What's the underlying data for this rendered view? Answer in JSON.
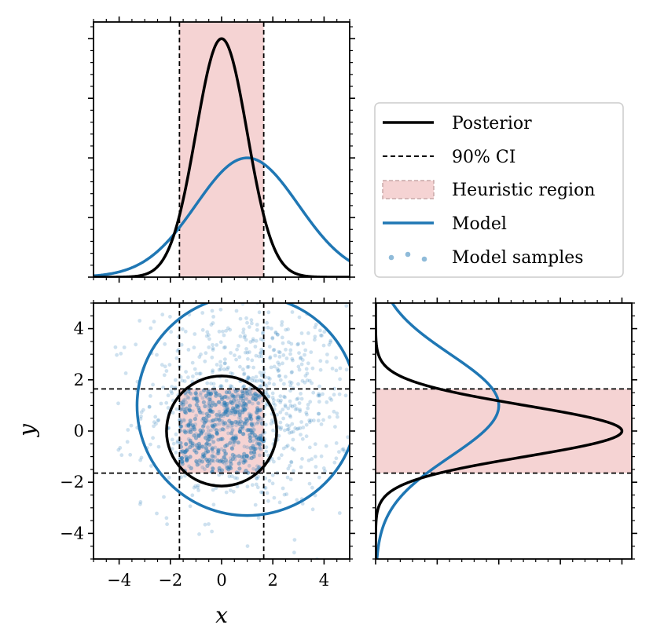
{
  "colors": {
    "posterior": "#000000",
    "model": "#1f77b4",
    "heuristic_fill": "#f5d3d3",
    "heuristic_edge": "#c8a8a8",
    "samples": "#1f77b4"
  },
  "chart_data": [
    {
      "name": "top-marginal-x",
      "type": "line",
      "xlim": [
        -5,
        5
      ],
      "ylim": [
        0,
        1.07
      ],
      "grid": false,
      "x_tick_labels_shown": false,
      "y_tick_labels_shown": false,
      "series": [
        {
          "name": "Posterior",
          "style": "solid-black",
          "curve": "normal",
          "mean": 0.0,
          "sd": 1.0,
          "peak": 1.0
        },
        {
          "name": "Model",
          "style": "solid-blue",
          "curve": "normal",
          "mean": 1.0,
          "sd": 2.0,
          "peak": 0.5
        }
      ],
      "vlines": [
        -1.645,
        1.645
      ],
      "shaded_x_range": [
        -1.645,
        1.645
      ]
    },
    {
      "name": "joint-scatter",
      "type": "scatter",
      "xlabel": "x",
      "ylabel": "y",
      "xlim": [
        -5,
        5
      ],
      "ylim": [
        -5,
        5
      ],
      "xticks": [
        -4,
        -2,
        0,
        2,
        4
      ],
      "xtick_labels": [
        "−4",
        "−2",
        "0",
        "2",
        "4"
      ],
      "yticks": [
        -4,
        -2,
        0,
        2,
        4
      ],
      "ytick_labels": [
        "−4",
        "−2",
        "0",
        "2",
        "4"
      ],
      "grid": false,
      "posterior_circle": {
        "cx": 0.0,
        "cy": 0.0,
        "r": 2.15
      },
      "model_circle": {
        "cx": 1.0,
        "cy": 1.0,
        "r": 4.3
      },
      "heuristic_box": {
        "x": [
          -1.645,
          1.645
        ],
        "y": [
          -1.645,
          1.645
        ]
      },
      "ci_lines": {
        "x": [
          -1.645,
          1.645
        ],
        "y": [
          -1.645,
          1.645
        ]
      },
      "samples": {
        "count": 900,
        "mean": [
          1.0,
          1.0
        ],
        "sd": 2.0,
        "dense_count": 320,
        "dense_box": [
          -1.645,
          1.645
        ]
      }
    },
    {
      "name": "right-marginal-y",
      "type": "line",
      "orientation": "horizontal",
      "ylim": [
        -5,
        5
      ],
      "xlim": [
        0,
        1.04
      ],
      "grid": false,
      "x_tick_labels_shown": false,
      "y_tick_labels_shown": false,
      "series": [
        {
          "name": "Posterior",
          "style": "solid-black",
          "curve": "normal",
          "mean": 0.0,
          "sd": 1.0,
          "peak": 1.0
        },
        {
          "name": "Model",
          "style": "solid-blue",
          "curve": "normal",
          "mean": 1.0,
          "sd": 2.0,
          "peak": 0.5
        }
      ],
      "hlines": [
        -1.645,
        1.645
      ],
      "shaded_y_range": [
        -1.645,
        1.645
      ]
    }
  ],
  "legend": {
    "placement": "top-right",
    "entries": [
      {
        "label": "Posterior",
        "kind": "solid-line",
        "color": "#000000"
      },
      {
        "label": "90% CI",
        "kind": "dashed-line",
        "color": "#000000"
      },
      {
        "label": "Heuristic region",
        "kind": "patch",
        "color": "#f5d3d3"
      },
      {
        "label": "Model",
        "kind": "solid-line",
        "color": "#1f77b4"
      },
      {
        "label": "Model samples",
        "kind": "dots",
        "color": "#1f77b4"
      }
    ]
  }
}
